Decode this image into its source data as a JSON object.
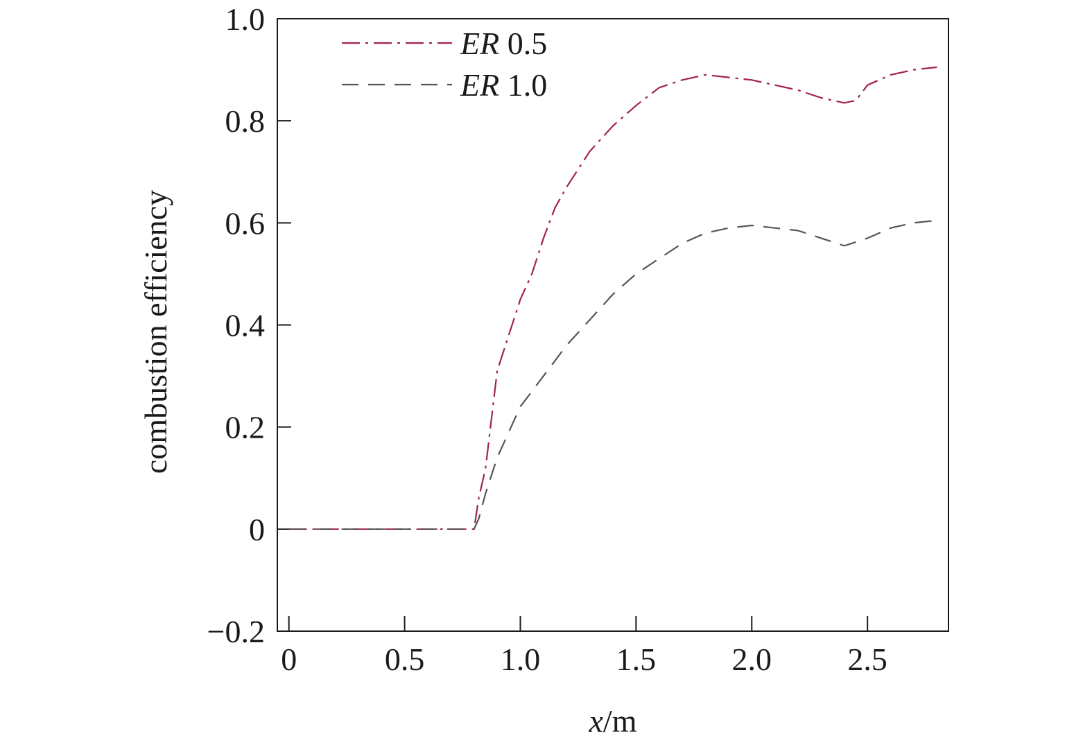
{
  "chart_data": {
    "type": "line",
    "title": "",
    "xlabel_var": "x",
    "xlabel_unit": "/m",
    "ylabel": "combustion efficiency",
    "xlim": [
      -0.05,
      2.85
    ],
    "ylim": [
      -0.2,
      1.0
    ],
    "x_ticks": [
      0,
      0.5,
      1.0,
      1.5,
      2.0,
      2.5
    ],
    "x_tick_labels": [
      "0",
      "0.5",
      "1.0",
      "1.5",
      "2.0",
      "2.5"
    ],
    "y_ticks": [
      -0.2,
      0,
      0.2,
      0.4,
      0.6,
      0.8,
      1.0
    ],
    "y_tick_labels": [
      "−0.2",
      "0",
      "0.2",
      "0.4",
      "0.6",
      "0.8",
      "1.0"
    ],
    "grid": false,
    "legend_position": "top-left",
    "series": [
      {
        "name_var": "ER",
        "name_value": " 0.5",
        "style": "dash-dot",
        "color": "#a3224a",
        "x": [
          0,
          0.5,
          0.8,
          0.82,
          0.85,
          0.9,
          0.95,
          1.0,
          1.05,
          1.1,
          1.15,
          1.2,
          1.3,
          1.4,
          1.5,
          1.6,
          1.7,
          1.8,
          1.9,
          2.0,
          2.1,
          2.2,
          2.3,
          2.4,
          2.45,
          2.5,
          2.6,
          2.7,
          2.8
        ],
        "y": [
          0,
          0,
          0,
          0.06,
          0.12,
          0.31,
          0.38,
          0.45,
          0.5,
          0.57,
          0.63,
          0.67,
          0.74,
          0.79,
          0.83,
          0.865,
          0.88,
          0.89,
          0.885,
          0.88,
          0.87,
          0.86,
          0.845,
          0.835,
          0.84,
          0.87,
          0.89,
          0.9,
          0.905
        ]
      },
      {
        "name_var": "ER",
        "name_value": " 1.0",
        "style": "dashed",
        "color": "#555555",
        "x": [
          0,
          0.5,
          0.8,
          0.82,
          0.85,
          0.9,
          1.0,
          1.1,
          1.2,
          1.3,
          1.4,
          1.5,
          1.6,
          1.7,
          1.8,
          1.9,
          2.0,
          2.1,
          2.2,
          2.3,
          2.4,
          2.5,
          2.6,
          2.7,
          2.8
        ],
        "y": [
          0,
          0,
          0,
          0.02,
          0.07,
          0.14,
          0.24,
          0.3,
          0.36,
          0.41,
          0.46,
          0.5,
          0.53,
          0.56,
          0.58,
          0.59,
          0.595,
          0.59,
          0.585,
          0.57,
          0.555,
          0.57,
          0.59,
          0.6,
          0.605
        ]
      }
    ]
  }
}
